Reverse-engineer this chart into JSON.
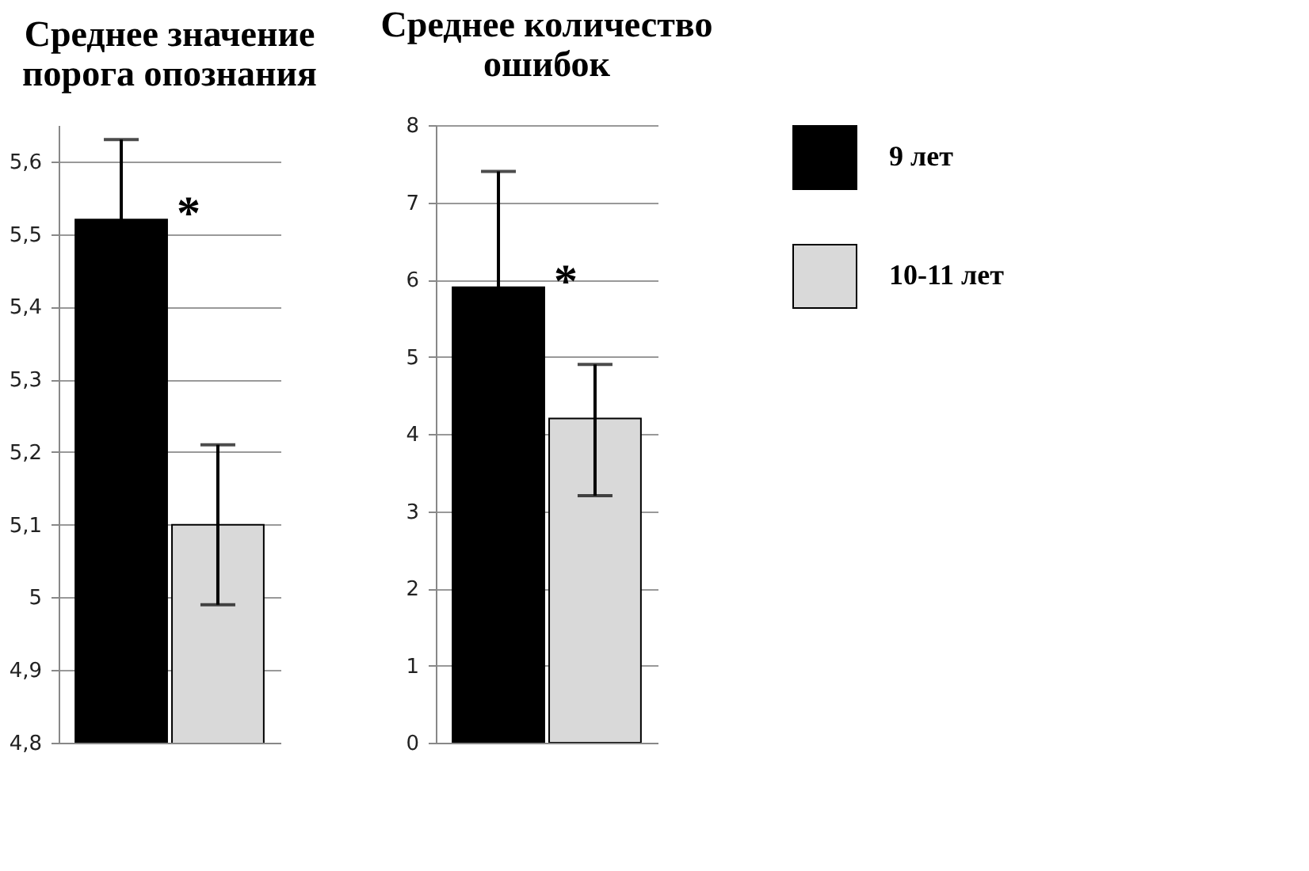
{
  "chart_data": [
    {
      "type": "bar",
      "title": "Среднее значение\nпорога опознания",
      "categories": [
        null
      ],
      "ylim": [
        4.8,
        5.65
      ],
      "yticks": [
        {
          "value": 4.8,
          "label": "4,8"
        },
        {
          "value": 4.9,
          "label": "4,9"
        },
        5,
        {
          "value": 5.1,
          "label": "5,1"
        },
        {
          "value": 5.2,
          "label": "5,2"
        },
        {
          "value": 5.3,
          "label": "5,3"
        },
        {
          "value": 5.4,
          "label": "5,4"
        },
        {
          "value": 5.5,
          "label": "5,5"
        },
        {
          "value": 5.6,
          "label": "5,6"
        }
      ],
      "grid": "y",
      "legend": "right",
      "tick_labels": "y",
      "annotations": [
        "*"
      ],
      "series": [
        {
          "name": "9 лет",
          "color": "#000000",
          "values": [
            5.52
          ],
          "errors": [
            0.11
          ]
        },
        {
          "name": "10-11 лет",
          "color": "#d9d9d9",
          "values": [
            5.1
          ],
          "errors": [
            0.11
          ]
        }
      ]
    },
    {
      "type": "bar",
      "title": "Среднее количество\nошибок",
      "categories": [
        null
      ],
      "ylim": [
        0,
        8
      ],
      "yticks": [
        0,
        1,
        2,
        3,
        4,
        5,
        6,
        7,
        8
      ],
      "grid": "y",
      "legend": "right",
      "tick_labels": "y",
      "annotations": [
        "*"
      ],
      "series": [
        {
          "name": "9 лет",
          "color": "#000000",
          "values": [
            5.9
          ],
          "errors": [
            1.5
          ]
        },
        {
          "name": "10-11 лет",
          "color": "#d9d9d9",
          "values": [
            4.2
          ],
          "errors": [
            [
              3.2,
              4.9
            ]
          ]
        }
      ]
    }
  ]
}
